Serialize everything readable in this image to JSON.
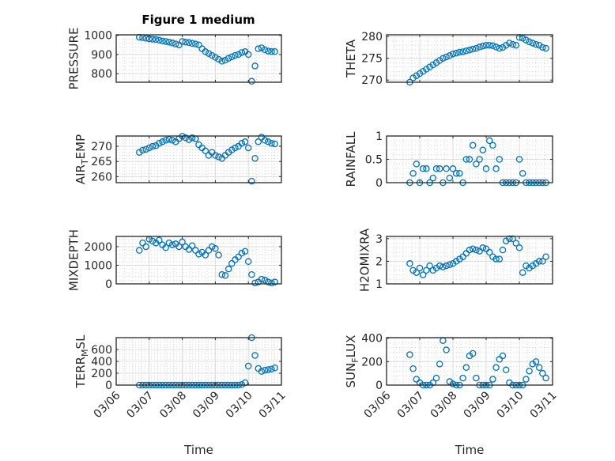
{
  "title": "Figure 1 medium",
  "colors": {
    "marker": "#0072BD",
    "axes": "#262626",
    "grid": "#dcdcdc"
  },
  "chart_data": {
    "type": "scatter",
    "title": "Figure 1 medium",
    "xlabel": "Time",
    "x_unit": "days since 03/06",
    "xlim": [
      0,
      5
    ],
    "xticks": [
      0,
      1,
      2,
      3,
      4,
      5
    ],
    "xtick_labels": [
      "03/06",
      "03/07",
      "03/08",
      "03/09",
      "03/10",
      "03/11"
    ],
    "grid": "on (major and minor)",
    "time_days": [
      0.7,
      0.8,
      0.9,
      1.0,
      1.1,
      1.2,
      1.3,
      1.4,
      1.5,
      1.6,
      1.7,
      1.8,
      1.9,
      2.0,
      2.1,
      2.2,
      2.3,
      2.4,
      2.5,
      2.6,
      2.7,
      2.8,
      2.9,
      3.0,
      3.1,
      3.2,
      3.3,
      3.4,
      3.5,
      3.6,
      3.7,
      3.8,
      3.9,
      4.0,
      4.1,
      4.2,
      4.3,
      4.4,
      4.5,
      4.6,
      4.7,
      4.8
    ],
    "subplots": [
      {
        "ylabel": "PRESSURE",
        "ylim": [
          755,
          1003
        ],
        "yticks": [
          800,
          900,
          1000
        ],
        "values": [
          990,
          988,
          985,
          982,
          980,
          978,
          975,
          970,
          968,
          965,
          960,
          955,
          950,
          968,
          965,
          962,
          958,
          955,
          950,
          930,
          915,
          905,
          895,
          885,
          875,
          865,
          870,
          880,
          888,
          895,
          900,
          910,
          915,
          900,
          760,
          840,
          930,
          935,
          925,
          918,
          915,
          915
        ]
      },
      {
        "ylabel": "THETA",
        "ylim": [
          269.5,
          280.4
        ],
        "yticks": [
          270,
          275,
          280
        ],
        "values": [
          269.5,
          270.5,
          271,
          271.5,
          272,
          272.5,
          273,
          273.5,
          274,
          274.5,
          275,
          275.3,
          275.6,
          276,
          276.2,
          276.4,
          276.5,
          276.7,
          276.9,
          277.1,
          277.3,
          277.6,
          277.8,
          278,
          278,
          277.9,
          277.6,
          277.3,
          277.5,
          278,
          278.5,
          278.2,
          278,
          279.8,
          279.6,
          279.2,
          278.8,
          278.5,
          278.2,
          278,
          277.5,
          277.3
        ]
      },
      {
        "ylabel": "AIR_TEMP",
        "ylim": [
          258,
          273.4
        ],
        "yticks": [
          260,
          265,
          270
        ],
        "values": [
          268,
          268.7,
          269,
          269.5,
          270,
          270.2,
          271,
          271.5,
          272,
          272.3,
          272,
          271.5,
          272.5,
          273.3,
          272.8,
          272.2,
          272.8,
          272.5,
          270.5,
          269.5,
          268.5,
          267,
          268,
          267,
          266.5,
          266,
          267,
          268,
          268.8,
          269.5,
          270,
          271,
          271.5,
          269.5,
          258.5,
          266,
          271.5,
          273,
          272,
          271.5,
          271,
          270.8
        ]
      },
      {
        "ylabel": "RAINFALL",
        "ylim": [
          0,
          1
        ],
        "yticks": [
          0,
          0.5,
          1
        ],
        "values": [
          0,
          0.2,
          0.4,
          0,
          0.3,
          0.3,
          0,
          0.1,
          0.3,
          0.3,
          0,
          0.3,
          0.1,
          0.3,
          0.2,
          0.2,
          0,
          0.5,
          0.5,
          0.8,
          0.4,
          0.5,
          0.7,
          0.3,
          0.9,
          0.8,
          0.3,
          0.5,
          0,
          0,
          0,
          0,
          0,
          0.5,
          0.2,
          0,
          0,
          0,
          0,
          0,
          0,
          0
        ]
      },
      {
        "ylabel": "MIXDEPTH",
        "ylim": [
          0,
          2550
        ],
        "yticks": [
          0,
          1000,
          2000
        ],
        "values": [
          1800,
          2200,
          2000,
          2400,
          2300,
          2200,
          2350,
          2100,
          1950,
          2200,
          2100,
          2150,
          2000,
          2250,
          2000,
          1850,
          2050,
          1800,
          1600,
          1700,
          1550,
          1800,
          2000,
          1900,
          1550,
          500,
          450,
          800,
          1100,
          1300,
          1450,
          1650,
          1750,
          1200,
          500,
          50,
          100,
          250,
          200,
          100,
          50,
          100
        ]
      },
      {
        "ylabel": "H2OMIXRA",
        "ylim": [
          1,
          3.1
        ],
        "yticks": [
          1,
          2,
          3
        ],
        "values": [
          1.9,
          1.6,
          1.5,
          1.7,
          1.4,
          1.6,
          1.8,
          1.6,
          1.7,
          1.8,
          1.75,
          1.8,
          1.85,
          1.9,
          2.0,
          2.1,
          2.2,
          2.35,
          2.5,
          2.55,
          2.5,
          2.45,
          2.6,
          2.55,
          2.4,
          2.2,
          2.1,
          2.1,
          2.5,
          2.9,
          3.0,
          3.0,
          2.8,
          2.6,
          1.5,
          1.8,
          1.7,
          1.8,
          1.9,
          2.0,
          2.0,
          2.2
        ]
      },
      {
        "ylabel": "TERR_MSL",
        "ylim": [
          0,
          800
        ],
        "yticks": [
          0,
          200,
          400,
          600
        ],
        "values": [
          0,
          0,
          0,
          0,
          0,
          0,
          0,
          0,
          0,
          0,
          0,
          0,
          0,
          0,
          0,
          0,
          0,
          0,
          0,
          0,
          0,
          0,
          0,
          0,
          0,
          0,
          0,
          0,
          0,
          0,
          0,
          10,
          40,
          320,
          800,
          500,
          280,
          230,
          250,
          260,
          270,
          290
        ]
      },
      {
        "ylabel": "SUN_FLUX",
        "ylim": [
          0,
          405
        ],
        "yticks": [
          0,
          200,
          400
        ],
        "values": [
          260,
          140,
          50,
          20,
          0,
          0,
          0,
          20,
          60,
          180,
          380,
          300,
          30,
          10,
          0,
          0,
          60,
          150,
          250,
          270,
          60,
          0,
          0,
          0,
          0,
          50,
          150,
          220,
          250,
          130,
          20,
          0,
          0,
          0,
          0,
          50,
          120,
          180,
          200,
          150,
          100,
          60
        ]
      }
    ]
  }
}
